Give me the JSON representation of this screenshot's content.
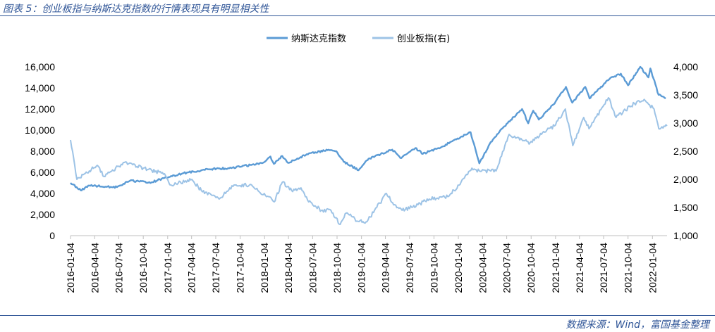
{
  "header": {
    "title": "图表 5：创业板指与纳斯达克指数的行情表现具有明显相关性"
  },
  "footer": {
    "source": "数据来源：Wind，富国基金整理"
  },
  "colors": {
    "series1": "#5b9bd5",
    "series2": "#9dc3e6",
    "rule": "#2f5597"
  },
  "chart_data": {
    "type": "line",
    "title": "",
    "legend_position": "top-center",
    "grid": false,
    "x_tick_labels": [
      "2016-01-04",
      "2016-04-04",
      "2016-07-04",
      "2016-10-04",
      "2017-01-04",
      "2017-04-04",
      "2017-07-04",
      "2017-10-04",
      "2018-01-04",
      "2018-04-04",
      "2018-07-04",
      "2018-10-04",
      "2019-01-04",
      "2019-04-04",
      "2019-07-04",
      "2019-10-04",
      "2020-01-04",
      "2020-04-04",
      "2020-07-04",
      "2020-10-04",
      "2021-01-04",
      "2021-04-04",
      "2021-07-04",
      "2021-10-04",
      "2022-01-04"
    ],
    "x_range": [
      "2016-01-04",
      "2022-02-28"
    ],
    "y_left": {
      "min": 0,
      "max": 16000,
      "ticks": [
        "0",
        "2,000",
        "4,000",
        "6,000",
        "8,000",
        "10,000",
        "12,000",
        "14,000",
        "16,000"
      ]
    },
    "y_right": {
      "min": 1000,
      "max": 4000,
      "ticks": [
        "1,000",
        "1,500",
        "2,000",
        "2,500",
        "3,000",
        "3,500",
        "4,000"
      ]
    },
    "series": [
      {
        "name": "纳斯达克指数",
        "axis": "left",
        "points": [
          [
            "2016-01-04",
            5000
          ],
          [
            "2016-02-11",
            4300
          ],
          [
            "2016-03-15",
            4750
          ],
          [
            "2016-06-27",
            4600
          ],
          [
            "2016-08-15",
            5200
          ],
          [
            "2016-11-04",
            5050
          ],
          [
            "2016-12-20",
            5450
          ],
          [
            "2017-03-01",
            5900
          ],
          [
            "2017-06-09",
            6300
          ],
          [
            "2017-09-01",
            6400
          ],
          [
            "2017-12-29",
            6900
          ],
          [
            "2018-01-26",
            7500
          ],
          [
            "2018-02-08",
            6800
          ],
          [
            "2018-03-12",
            7550
          ],
          [
            "2018-04-02",
            6900
          ],
          [
            "2018-06-20",
            7800
          ],
          [
            "2018-08-29",
            8100
          ],
          [
            "2018-10-01",
            8000
          ],
          [
            "2018-10-29",
            7000
          ],
          [
            "2018-12-24",
            6200
          ],
          [
            "2019-01-31",
            7300
          ],
          [
            "2019-04-30",
            8150
          ],
          [
            "2019-06-03",
            7350
          ],
          [
            "2019-07-26",
            8300
          ],
          [
            "2019-08-23",
            7750
          ],
          [
            "2019-11-01",
            8400
          ],
          [
            "2020-01-17",
            9400
          ],
          [
            "2020-02-19",
            9800
          ],
          [
            "2020-03-23",
            6850
          ],
          [
            "2020-05-01",
            8700
          ],
          [
            "2020-06-10",
            10000
          ],
          [
            "2020-08-31",
            12000
          ],
          [
            "2020-09-23",
            10650
          ],
          [
            "2020-10-12",
            11850
          ],
          [
            "2020-11-02",
            11000
          ],
          [
            "2021-01-04",
            12700
          ],
          [
            "2021-02-12",
            14100
          ],
          [
            "2021-03-08",
            12600
          ],
          [
            "2021-04-26",
            14100
          ],
          [
            "2021-05-12",
            13000
          ],
          [
            "2021-07-26",
            14850
          ],
          [
            "2021-09-07",
            15350
          ],
          [
            "2021-10-04",
            14250
          ],
          [
            "2021-11-19",
            16000
          ],
          [
            "2021-12-20",
            15000
          ],
          [
            "2021-12-27",
            15850
          ],
          [
            "2022-01-27",
            13350
          ],
          [
            "2022-02-23",
            13000
          ]
        ]
      },
      {
        "name": "创业板指(右)",
        "axis": "right",
        "points": [
          [
            "2016-01-04",
            2700
          ],
          [
            "2016-01-28",
            2000
          ],
          [
            "2016-03-15",
            2150
          ],
          [
            "2016-04-14",
            2250
          ],
          [
            "2016-05-09",
            2050
          ],
          [
            "2016-07-25",
            2300
          ],
          [
            "2016-10-04",
            2200
          ],
          [
            "2016-12-23",
            2100
          ],
          [
            "2017-01-16",
            1900
          ],
          [
            "2017-04-05",
            2000
          ],
          [
            "2017-05-11",
            1800
          ],
          [
            "2017-07-17",
            1650
          ],
          [
            "2017-09-11",
            1900
          ],
          [
            "2017-11-08",
            1900
          ],
          [
            "2018-01-15",
            1700
          ],
          [
            "2018-02-09",
            1600
          ],
          [
            "2018-03-12",
            1950
          ],
          [
            "2018-04-16",
            1800
          ],
          [
            "2018-05-21",
            1850
          ],
          [
            "2018-06-19",
            1600
          ],
          [
            "2018-08-06",
            1450
          ],
          [
            "2018-09-11",
            1450
          ],
          [
            "2018-10-16",
            1200
          ],
          [
            "2018-11-07",
            1400
          ],
          [
            "2018-12-26",
            1250
          ],
          [
            "2019-01-25",
            1250
          ],
          [
            "2019-04-08",
            1750
          ],
          [
            "2019-05-09",
            1550
          ],
          [
            "2019-06-06",
            1450
          ],
          [
            "2019-08-05",
            1550
          ],
          [
            "2019-09-16",
            1650
          ],
          [
            "2019-11-29",
            1700
          ],
          [
            "2020-01-14",
            1950
          ],
          [
            "2020-02-24",
            2200
          ],
          [
            "2020-03-23",
            2150
          ],
          [
            "2020-05-25",
            2150
          ],
          [
            "2020-07-13",
            2800
          ],
          [
            "2020-07-30",
            2750
          ],
          [
            "2020-09-30",
            2650
          ],
          [
            "2020-11-20",
            2850
          ],
          [
            "2020-12-31",
            2950
          ],
          [
            "2021-02-10",
            3250
          ],
          [
            "2021-03-10",
            2600
          ],
          [
            "2021-04-20",
            3100
          ],
          [
            "2021-05-10",
            2900
          ],
          [
            "2021-07-22",
            3450
          ],
          [
            "2021-08-20",
            3100
          ],
          [
            "2021-10-28",
            3350
          ],
          [
            "2021-12-08",
            3400
          ],
          [
            "2022-01-10",
            3250
          ],
          [
            "2022-01-28",
            2900
          ],
          [
            "2022-02-28",
            2950
          ]
        ]
      }
    ]
  }
}
